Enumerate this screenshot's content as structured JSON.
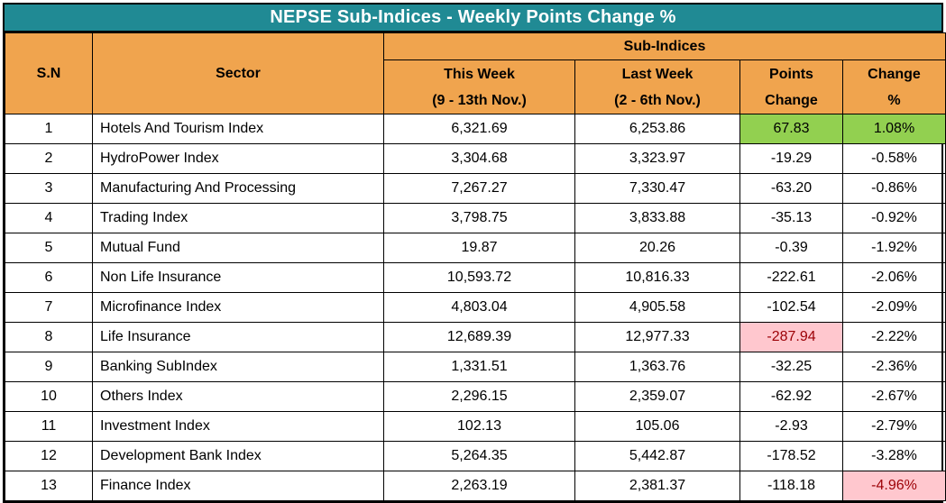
{
  "title": "NEPSE Sub-Indices - Weekly Points Change %",
  "colors": {
    "title_bg": "#208A94",
    "header_bg": "#F0A44E",
    "positive_bg": "#92D050",
    "negative_bg": "#FFC7CE",
    "negative_text": "#9C0006",
    "border": "#000000",
    "cell_bg": "#FFFFFF"
  },
  "header": {
    "sn": "S.N",
    "sector": "Sector",
    "group": "Sub-Indices",
    "this_week_l1": "This Week",
    "this_week_l2": "(9 - 13th Nov.)",
    "last_week_l1": "Last Week",
    "last_week_l2": "(2 - 6th Nov.)",
    "points_l1": "Points",
    "points_l2": "Change",
    "change_l1": "Change",
    "change_l2": "%"
  },
  "rows": [
    {
      "sn": "1",
      "sector": "Hotels And Tourism Index",
      "this_week": "6,321.69",
      "last_week": "6,253.86",
      "points_change": "67.83",
      "change_pct": "1.08%",
      "points_highlight": "positive",
      "pct_highlight": "positive"
    },
    {
      "sn": "2",
      "sector": "HydroPower Index",
      "this_week": "3,304.68",
      "last_week": "3,323.97",
      "points_change": "-19.29",
      "change_pct": "-0.58%",
      "points_highlight": "none",
      "pct_highlight": "none"
    },
    {
      "sn": "3",
      "sector": "Manufacturing And Processing",
      "this_week": "7,267.27",
      "last_week": "7,330.47",
      "points_change": "-63.20",
      "change_pct": "-0.86%",
      "points_highlight": "none",
      "pct_highlight": "none"
    },
    {
      "sn": "4",
      "sector": "Trading Index",
      "this_week": "3,798.75",
      "last_week": "3,833.88",
      "points_change": "-35.13",
      "change_pct": "-0.92%",
      "points_highlight": "none",
      "pct_highlight": "none"
    },
    {
      "sn": "5",
      "sector": "Mutual Fund",
      "this_week": "19.87",
      "last_week": "20.26",
      "points_change": "-0.39",
      "change_pct": "-1.92%",
      "points_highlight": "none",
      "pct_highlight": "none"
    },
    {
      "sn": "6",
      "sector": "Non Life Insurance",
      "this_week": "10,593.72",
      "last_week": "10,816.33",
      "points_change": "-222.61",
      "change_pct": "-2.06%",
      "points_highlight": "none",
      "pct_highlight": "none"
    },
    {
      "sn": "7",
      "sector": "Microfinance Index",
      "this_week": "4,803.04",
      "last_week": "4,905.58",
      "points_change": "-102.54",
      "change_pct": "-2.09%",
      "points_highlight": "none",
      "pct_highlight": "none"
    },
    {
      "sn": "8",
      "sector": "Life Insurance",
      "this_week": "12,689.39",
      "last_week": "12,977.33",
      "points_change": "-287.94",
      "change_pct": "-2.22%",
      "points_highlight": "negative",
      "pct_highlight": "none"
    },
    {
      "sn": "9",
      "sector": "Banking SubIndex",
      "this_week": "1,331.51",
      "last_week": "1,363.76",
      "points_change": "-32.25",
      "change_pct": "-2.36%",
      "points_highlight": "none",
      "pct_highlight": "none"
    },
    {
      "sn": "10",
      "sector": "Others Index",
      "this_week": "2,296.15",
      "last_week": "2,359.07",
      "points_change": "-62.92",
      "change_pct": "-2.67%",
      "points_highlight": "none",
      "pct_highlight": "none"
    },
    {
      "sn": "11",
      "sector": "Investment Index",
      "this_week": "102.13",
      "last_week": "105.06",
      "points_change": "-2.93",
      "change_pct": "-2.79%",
      "points_highlight": "none",
      "pct_highlight": "none"
    },
    {
      "sn": "12",
      "sector": "Development Bank Index",
      "this_week": "5,264.35",
      "last_week": "5,442.87",
      "points_change": "-178.52",
      "change_pct": "-3.28%",
      "points_highlight": "none",
      "pct_highlight": "none"
    },
    {
      "sn": "13",
      "sector": "Finance Index",
      "this_week": "2,263.19",
      "last_week": "2,381.37",
      "points_change": "-118.18",
      "change_pct": "-4.96%",
      "points_highlight": "none",
      "pct_highlight": "negative"
    }
  ],
  "chart_data": {
    "type": "table",
    "title": "NEPSE Sub-Indices - Weekly Points Change %",
    "columns": [
      "S.N",
      "Sector",
      "This Week (9 - 13th Nov.)",
      "Last Week (2 - 6th Nov.)",
      "Points Change",
      "Change %"
    ],
    "rows": [
      [
        1,
        "Hotels And Tourism Index",
        6321.69,
        6253.86,
        67.83,
        1.08
      ],
      [
        2,
        "HydroPower Index",
        3304.68,
        3323.97,
        -19.29,
        -0.58
      ],
      [
        3,
        "Manufacturing And Processing",
        7267.27,
        7330.47,
        -63.2,
        -0.86
      ],
      [
        4,
        "Trading Index",
        3798.75,
        3833.88,
        -35.13,
        -0.92
      ],
      [
        5,
        "Mutual Fund",
        19.87,
        20.26,
        -0.39,
        -1.92
      ],
      [
        6,
        "Non Life Insurance",
        10593.72,
        10816.33,
        -222.61,
        -2.06
      ],
      [
        7,
        "Microfinance Index",
        4803.04,
        4905.58,
        -102.54,
        -2.09
      ],
      [
        8,
        "Life Insurance",
        12689.39,
        12977.33,
        -287.94,
        -2.22
      ],
      [
        9,
        "Banking SubIndex",
        1331.51,
        1363.76,
        -32.25,
        -2.36
      ],
      [
        10,
        "Others Index",
        2296.15,
        2359.07,
        -62.92,
        -2.67
      ],
      [
        11,
        "Investment Index",
        102.13,
        105.06,
        -2.93,
        -2.79
      ],
      [
        12,
        "Development Bank Index",
        5264.35,
        5442.87,
        -178.52,
        -3.28
      ],
      [
        13,
        "Finance Index",
        2263.19,
        2381.37,
        -118.18,
        -4.96
      ]
    ],
    "highlights": {
      "green_cells": [
        {
          "row": 1,
          "columns": [
            "Points Change",
            "Change %"
          ]
        }
      ],
      "pink_cells": [
        {
          "row": 8,
          "columns": [
            "Points Change"
          ]
        },
        {
          "row": 13,
          "columns": [
            "Change %"
          ]
        }
      ]
    },
    "legend_position": "none",
    "grid": true
  }
}
